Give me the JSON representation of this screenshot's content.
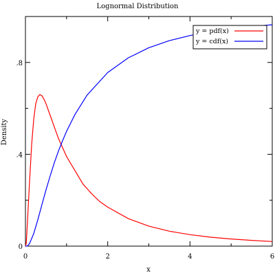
{
  "chart_data": {
    "type": "line",
    "title": "Lognormal Distribution",
    "xlabel": "x",
    "ylabel": "Density",
    "xlim": [
      0,
      6
    ],
    "ylim": [
      0,
      1
    ],
    "grid": false,
    "legend_position": "top-right",
    "x_ticks": [
      {
        "value": 0,
        "label": "0"
      },
      {
        "value": 2,
        "label": "2"
      },
      {
        "value": 4,
        "label": "4"
      },
      {
        "value": 6,
        "label": "6"
      }
    ],
    "y_ticks": [
      {
        "value": 0,
        "label": "0"
      },
      {
        "value": 0.4,
        "label": ".4"
      },
      {
        "value": 0.8,
        "label": ".8"
      }
    ],
    "series": [
      {
        "name": "y = pdf(x)",
        "color": "#ff0000",
        "x": [
          0,
          0.02,
          0.05,
          0.1,
          0.15,
          0.2,
          0.25,
          0.3,
          0.35,
          0.4,
          0.45,
          0.5,
          0.6,
          0.7,
          0.8,
          0.9,
          1.0,
          1.2,
          1.4,
          1.6,
          1.8,
          2.0,
          2.5,
          3.0,
          3.5,
          4.0,
          4.5,
          5.0,
          5.5,
          6.0
        ],
        "y": [
          0,
          0.012,
          0.11,
          0.28,
          0.44,
          0.55,
          0.62,
          0.65,
          0.66,
          0.655,
          0.64,
          0.62,
          0.57,
          0.52,
          0.47,
          0.43,
          0.39,
          0.33,
          0.27,
          0.23,
          0.195,
          0.17,
          0.12,
          0.087,
          0.065,
          0.05,
          0.039,
          0.031,
          0.025,
          0.02
        ]
      },
      {
        "name": "y = cdf(x)",
        "color": "#0000ff",
        "x": [
          0,
          0.05,
          0.1,
          0.2,
          0.3,
          0.4,
          0.5,
          0.6,
          0.7,
          0.8,
          0.9,
          1.0,
          1.2,
          1.5,
          2.0,
          2.5,
          3.0,
          3.5,
          4.0,
          4.5,
          5.0,
          5.5,
          6.0
        ],
        "y": [
          0,
          0.001,
          0.011,
          0.054,
          0.114,
          0.18,
          0.245,
          0.305,
          0.362,
          0.413,
          0.458,
          0.5,
          0.572,
          0.658,
          0.756,
          0.82,
          0.864,
          0.895,
          0.917,
          0.934,
          0.947,
          0.957,
          0.964
        ]
      }
    ]
  }
}
